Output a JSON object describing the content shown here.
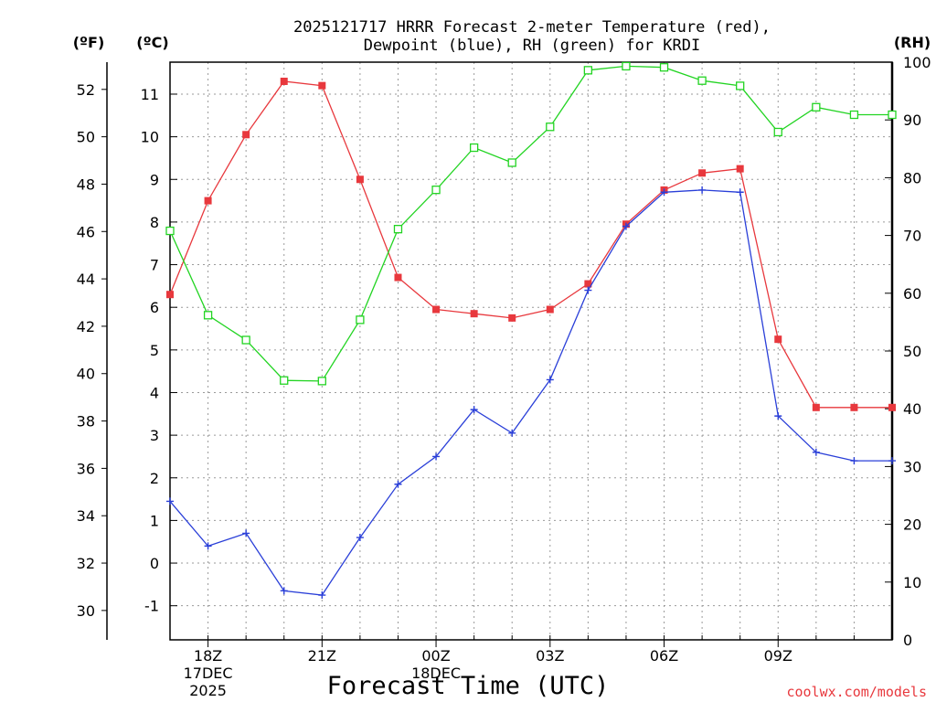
{
  "chart_data": {
    "type": "line",
    "title_line1": "2025121717 HRRR Forecast 2-meter Temperature (red),",
    "title_line2": "Dewpoint (blue), RH (green) for KRDI",
    "xlabel": "Forecast Time (UTC)",
    "unit_f": "(ºF)",
    "unit_c": "(ºC)",
    "unit_rh": "(RH)",
    "watermark": "coolwx.com/models",
    "x_hours": [
      17,
      18,
      19,
      20,
      21,
      22,
      23,
      24,
      25,
      26,
      27,
      28,
      29,
      30,
      31,
      32,
      33,
      34,
      35,
      36
    ],
    "x_ticks": [
      {
        "hour": 18,
        "label": "18Z",
        "sub1": "17DEC",
        "sub2": "2025"
      },
      {
        "hour": 21,
        "label": "21Z",
        "sub1": "",
        "sub2": ""
      },
      {
        "hour": 24,
        "label": "00Z",
        "sub1": "18DEC",
        "sub2": ""
      },
      {
        "hour": 27,
        "label": "03Z",
        "sub1": "",
        "sub2": ""
      },
      {
        "hour": 30,
        "label": "06Z",
        "sub1": "",
        "sub2": ""
      },
      {
        "hour": 33,
        "label": "09Z",
        "sub1": "",
        "sub2": ""
      }
    ],
    "c_range": [
      -1.8,
      11.75
    ],
    "c_ticks": [
      "-1",
      "0",
      "1",
      "2",
      "3",
      "4",
      "5",
      "6",
      "7",
      "8",
      "9",
      "10",
      "11"
    ],
    "f_ticks": [
      "30",
      "32",
      "34",
      "36",
      "38",
      "40",
      "42",
      "44",
      "46",
      "48",
      "50",
      "52"
    ],
    "rh_range": [
      0,
      100
    ],
    "rh_ticks": [
      "0",
      "10",
      "20",
      "30",
      "40",
      "50",
      "60",
      "70",
      "80",
      "90",
      "100"
    ],
    "grid": true,
    "colors": {
      "temperature": "#e8383d",
      "dewpoint": "#2a3fd8",
      "rh": "#22d422"
    },
    "series": [
      {
        "key": "temperature",
        "axis": "c",
        "marker": "filled-square",
        "values": [
          6.3,
          8.5,
          10.05,
          11.3,
          11.2,
          9.0,
          6.7,
          5.95,
          5.85,
          5.75,
          5.95,
          6.55,
          7.95,
          8.75,
          9.15,
          9.25,
          5.25,
          3.65,
          3.65,
          3.65
        ]
      },
      {
        "key": "dewpoint",
        "axis": "c",
        "marker": "plus",
        "values": [
          1.45,
          0.4,
          0.7,
          -0.65,
          -0.75,
          0.6,
          1.85,
          2.5,
          3.6,
          3.05,
          4.3,
          6.4,
          7.9,
          8.7,
          8.75,
          8.7,
          3.45,
          2.6,
          2.4,
          2.4
        ]
      },
      {
        "key": "rh",
        "axis": "rh",
        "marker": "open-square",
        "values": [
          70.8,
          56.2,
          51.9,
          44.9,
          44.8,
          55.4,
          71.1,
          77.9,
          85.2,
          82.6,
          88.8,
          98.6,
          99.3,
          99.1,
          96.8,
          95.9,
          87.9,
          92.2,
          90.9,
          90.9
        ]
      }
    ]
  }
}
